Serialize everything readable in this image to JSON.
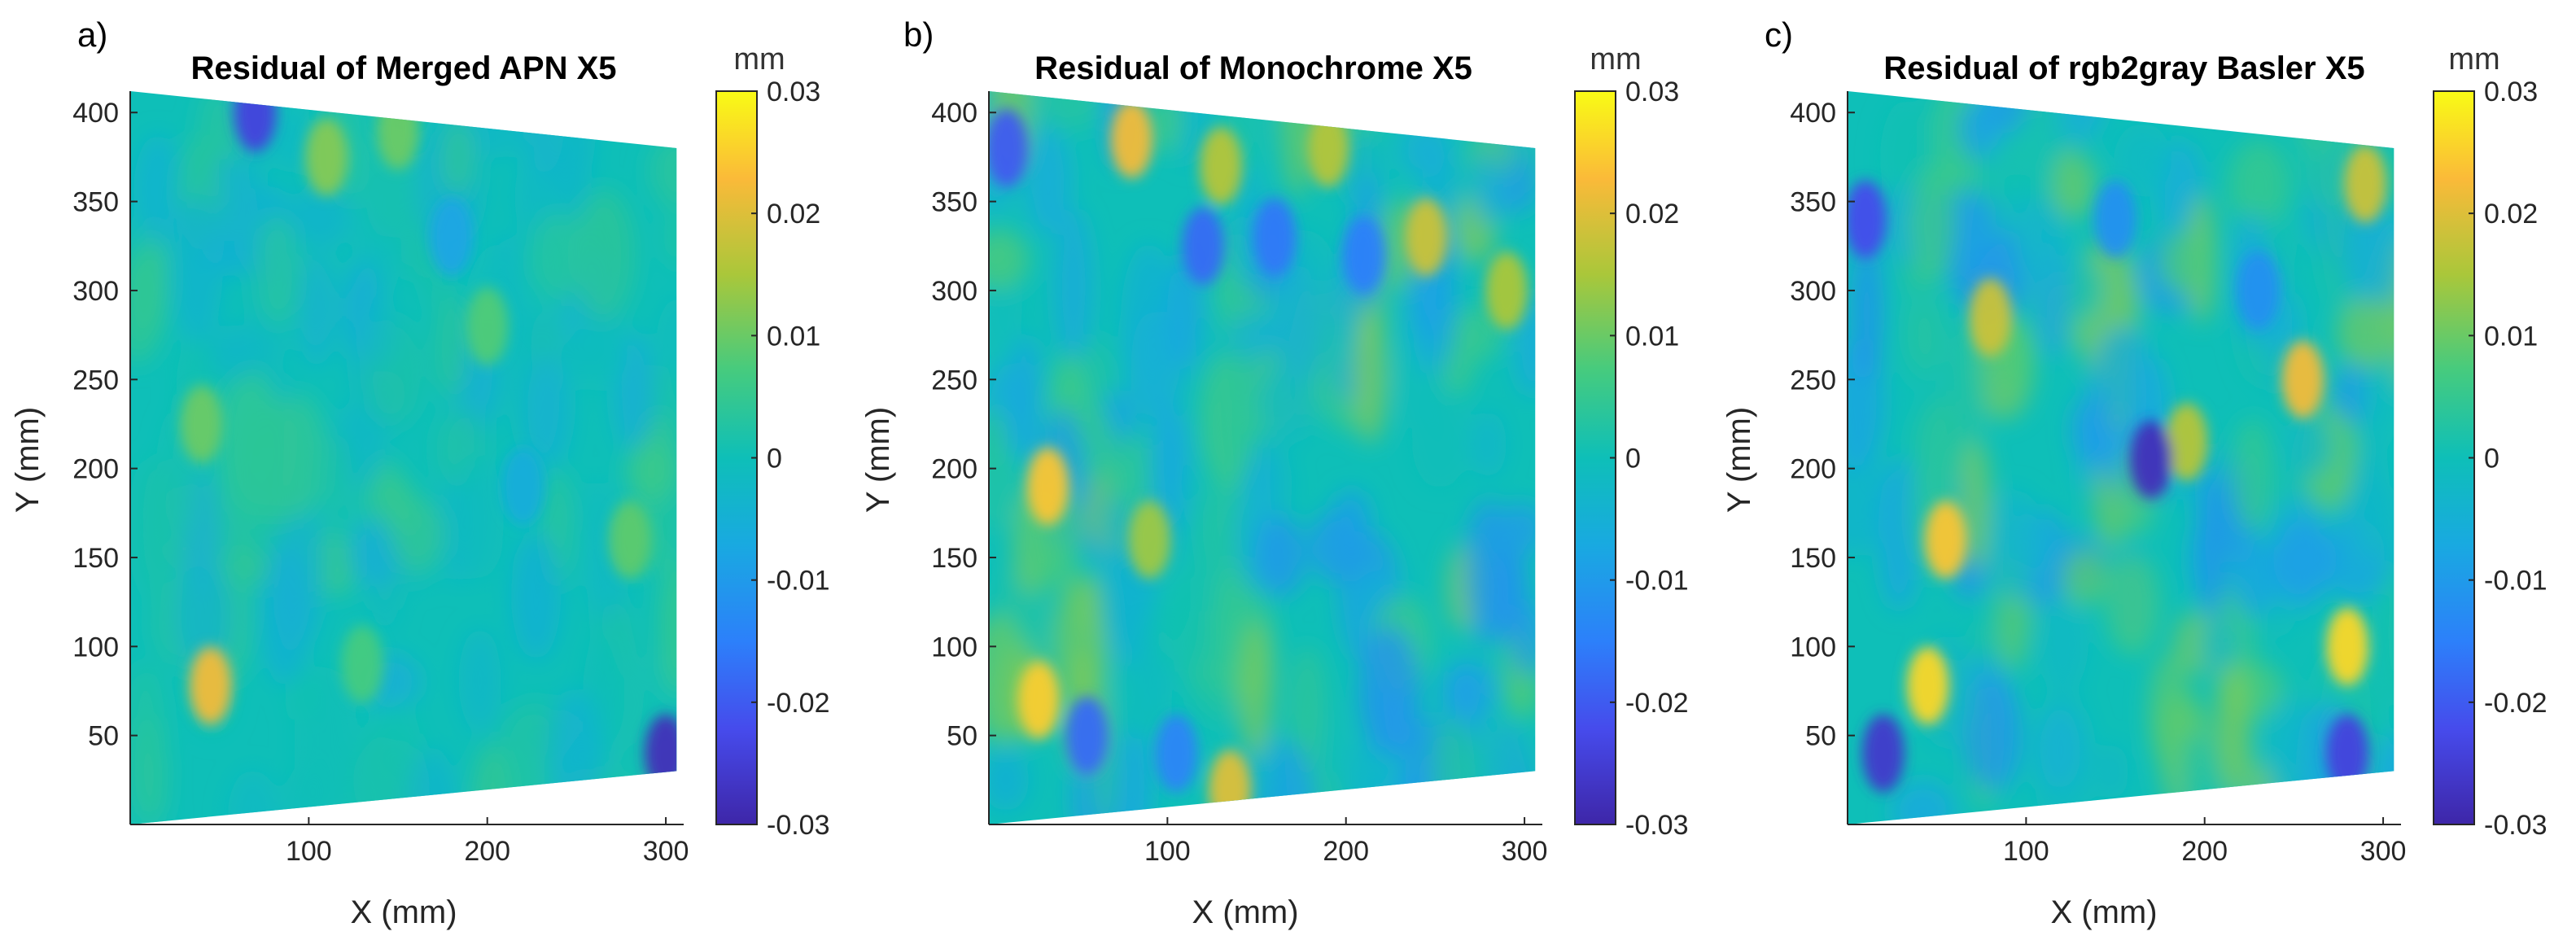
{
  "chart_data": [
    {
      "type": "heatmap",
      "panel_label": "a)",
      "title": "Residual of Merged APN X5",
      "xlabel": "X (mm)",
      "ylabel": "Y (mm)",
      "xlim": [
        0,
        310
      ],
      "ylim": [
        0,
        412
      ],
      "x_ticks": [
        100,
        200,
        300
      ],
      "y_ticks": [
        50,
        100,
        150,
        200,
        250,
        300,
        350,
        400
      ],
      "colorbar": {
        "label": "mm",
        "range": [
          -0.03,
          0.03
        ],
        "ticks": [
          -0.03,
          -0.02,
          -0.01,
          0,
          0.01,
          0.02,
          0.03
        ],
        "tick_labels": [
          "-0.03",
          "-0.02",
          "-0.01",
          "0",
          "0.01",
          "0.02",
          "0.03"
        ]
      },
      "residual_amplitude": 0.006,
      "hotspots": [
        {
          "x": 45,
          "y": 78,
          "value": 0.022
        },
        {
          "x": 110,
          "y": 375,
          "value": 0.012
        },
        {
          "x": 150,
          "y": 390,
          "value": 0.01
        },
        {
          "x": 40,
          "y": 225,
          "value": 0.01
        },
        {
          "x": 280,
          "y": 160,
          "value": 0.009
        },
        {
          "x": 200,
          "y": 280,
          "value": 0.008
        },
        {
          "x": 130,
          "y": 90,
          "value": 0.007
        },
        {
          "x": 180,
          "y": 330,
          "value": -0.008
        },
        {
          "x": 220,
          "y": 190,
          "value": -0.006
        },
        {
          "x": 300,
          "y": 40,
          "value": -0.028
        },
        {
          "x": 70,
          "y": 400,
          "value": -0.024
        }
      ]
    },
    {
      "type": "heatmap",
      "panel_label": "b)",
      "title": "Residual of Monochrome X5",
      "xlabel": "X (mm)",
      "ylabel": "Y (mm)",
      "xlim": [
        0,
        310
      ],
      "ylim": [
        0,
        412
      ],
      "x_ticks": [
        100,
        200,
        300
      ],
      "y_ticks": [
        50,
        100,
        150,
        200,
        250,
        300,
        350,
        400
      ],
      "colorbar": {
        "label": "mm",
        "range": [
          -0.03,
          0.03
        ],
        "ticks": [
          -0.03,
          -0.02,
          -0.01,
          0,
          0.01,
          0.02,
          0.03
        ],
        "tick_labels": [
          "-0.03",
          "-0.02",
          "-0.01",
          "0",
          "0.01",
          "0.02",
          "0.03"
        ]
      },
      "residual_amplitude": 0.012,
      "hotspots": [
        {
          "x": 33,
          "y": 190,
          "value": 0.024
        },
        {
          "x": 28,
          "y": 70,
          "value": 0.025
        },
        {
          "x": 80,
          "y": 385,
          "value": 0.022
        },
        {
          "x": 135,
          "y": 20,
          "value": 0.02
        },
        {
          "x": 245,
          "y": 330,
          "value": 0.018
        },
        {
          "x": 130,
          "y": 370,
          "value": 0.016
        },
        {
          "x": 190,
          "y": 380,
          "value": 0.016
        },
        {
          "x": 290,
          "y": 300,
          "value": 0.015
        },
        {
          "x": 90,
          "y": 160,
          "value": 0.014
        },
        {
          "x": 120,
          "y": 325,
          "value": -0.018
        },
        {
          "x": 160,
          "y": 330,
          "value": -0.016
        },
        {
          "x": 210,
          "y": 320,
          "value": -0.015
        },
        {
          "x": 55,
          "y": 50,
          "value": -0.018
        },
        {
          "x": 105,
          "y": 40,
          "value": -0.014
        },
        {
          "x": 10,
          "y": 380,
          "value": -0.02
        }
      ]
    },
    {
      "type": "heatmap",
      "panel_label": "c)",
      "title": "Residual of rgb2gray Basler X5",
      "xlabel": "X (mm)",
      "ylabel": "Y (mm)",
      "xlim": [
        0,
        310
      ],
      "ylim": [
        0,
        412
      ],
      "x_ticks": [
        100,
        200,
        300
      ],
      "y_ticks": [
        50,
        100,
        150,
        200,
        250,
        300,
        350,
        400
      ],
      "colorbar": {
        "label": "mm",
        "range": [
          -0.03,
          0.03
        ],
        "ticks": [
          -0.03,
          -0.02,
          -0.01,
          0,
          0.01,
          0.02,
          0.03
        ],
        "tick_labels": [
          "-0.03",
          "-0.02",
          "-0.01",
          "0",
          "0.01",
          "0.02",
          "0.03"
        ]
      },
      "residual_amplitude": 0.012,
      "hotspots": [
        {
          "x": 55,
          "y": 160,
          "value": 0.024
        },
        {
          "x": 45,
          "y": 78,
          "value": 0.026
        },
        {
          "x": 80,
          "y": 285,
          "value": 0.018
        },
        {
          "x": 255,
          "y": 250,
          "value": 0.022
        },
        {
          "x": 190,
          "y": 215,
          "value": 0.016
        },
        {
          "x": 280,
          "y": 100,
          "value": 0.026
        },
        {
          "x": 290,
          "y": 360,
          "value": 0.018
        },
        {
          "x": 170,
          "y": 205,
          "value": -0.028
        },
        {
          "x": 10,
          "y": 340,
          "value": -0.022
        },
        {
          "x": 20,
          "y": 40,
          "value": -0.026
        },
        {
          "x": 280,
          "y": 40,
          "value": -0.024
        },
        {
          "x": 150,
          "y": 340,
          "value": -0.012
        },
        {
          "x": 230,
          "y": 300,
          "value": -0.012
        }
      ]
    }
  ]
}
